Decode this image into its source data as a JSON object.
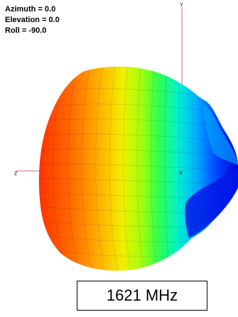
{
  "orientation": {
    "azimuth": "Azimuth = 0.0",
    "elevation": "Elevation = 0.0",
    "roll": "Roll = -90.0"
  },
  "axes": {
    "y_label": "Y",
    "z_label": "Z",
    "x_label": "X",
    "color": "#e0607f"
  },
  "frequency_label": "1621 MHz",
  "colormap": [
    "#ff3300",
    "#ff7a00",
    "#ffc800",
    "#d8ff00",
    "#66ff22",
    "#00ffb0",
    "#00c8ff",
    "#0060ff",
    "#0000e0"
  ]
}
